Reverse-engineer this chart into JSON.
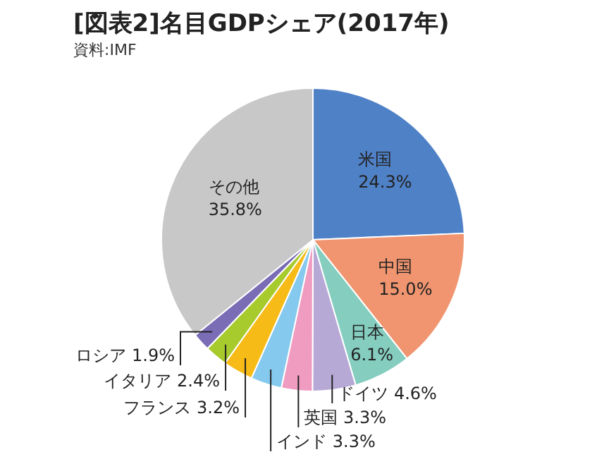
{
  "chart_data": {
    "type": "pie",
    "title": "[図表2]名目GDPシェア(2017年)",
    "annotations": [
      "資料:IMF"
    ],
    "categories": [
      "米国",
      "中国",
      "日本",
      "ドイツ",
      "英国",
      "インド",
      "フランス",
      "イタリア",
      "ロシア",
      "その他"
    ],
    "values": [
      24.3,
      15.0,
      6.1,
      4.6,
      3.3,
      3.3,
      3.2,
      2.4,
      1.9,
      35.8
    ],
    "value_labels": [
      "24.3%",
      "15.0%",
      "6.1%",
      "4.6%",
      "3.3%",
      "3.3%",
      "3.2%",
      "2.4%",
      "1.9%",
      "35.8%"
    ],
    "colors": [
      "#4f81c7",
      "#f0956f",
      "#84cdbf",
      "#b6a9d6",
      "#f09bc0",
      "#86c9ee",
      "#f7bb17",
      "#a7ca2c",
      "#7a6cb5",
      "#c8c8c8"
    ],
    "legend": false
  }
}
